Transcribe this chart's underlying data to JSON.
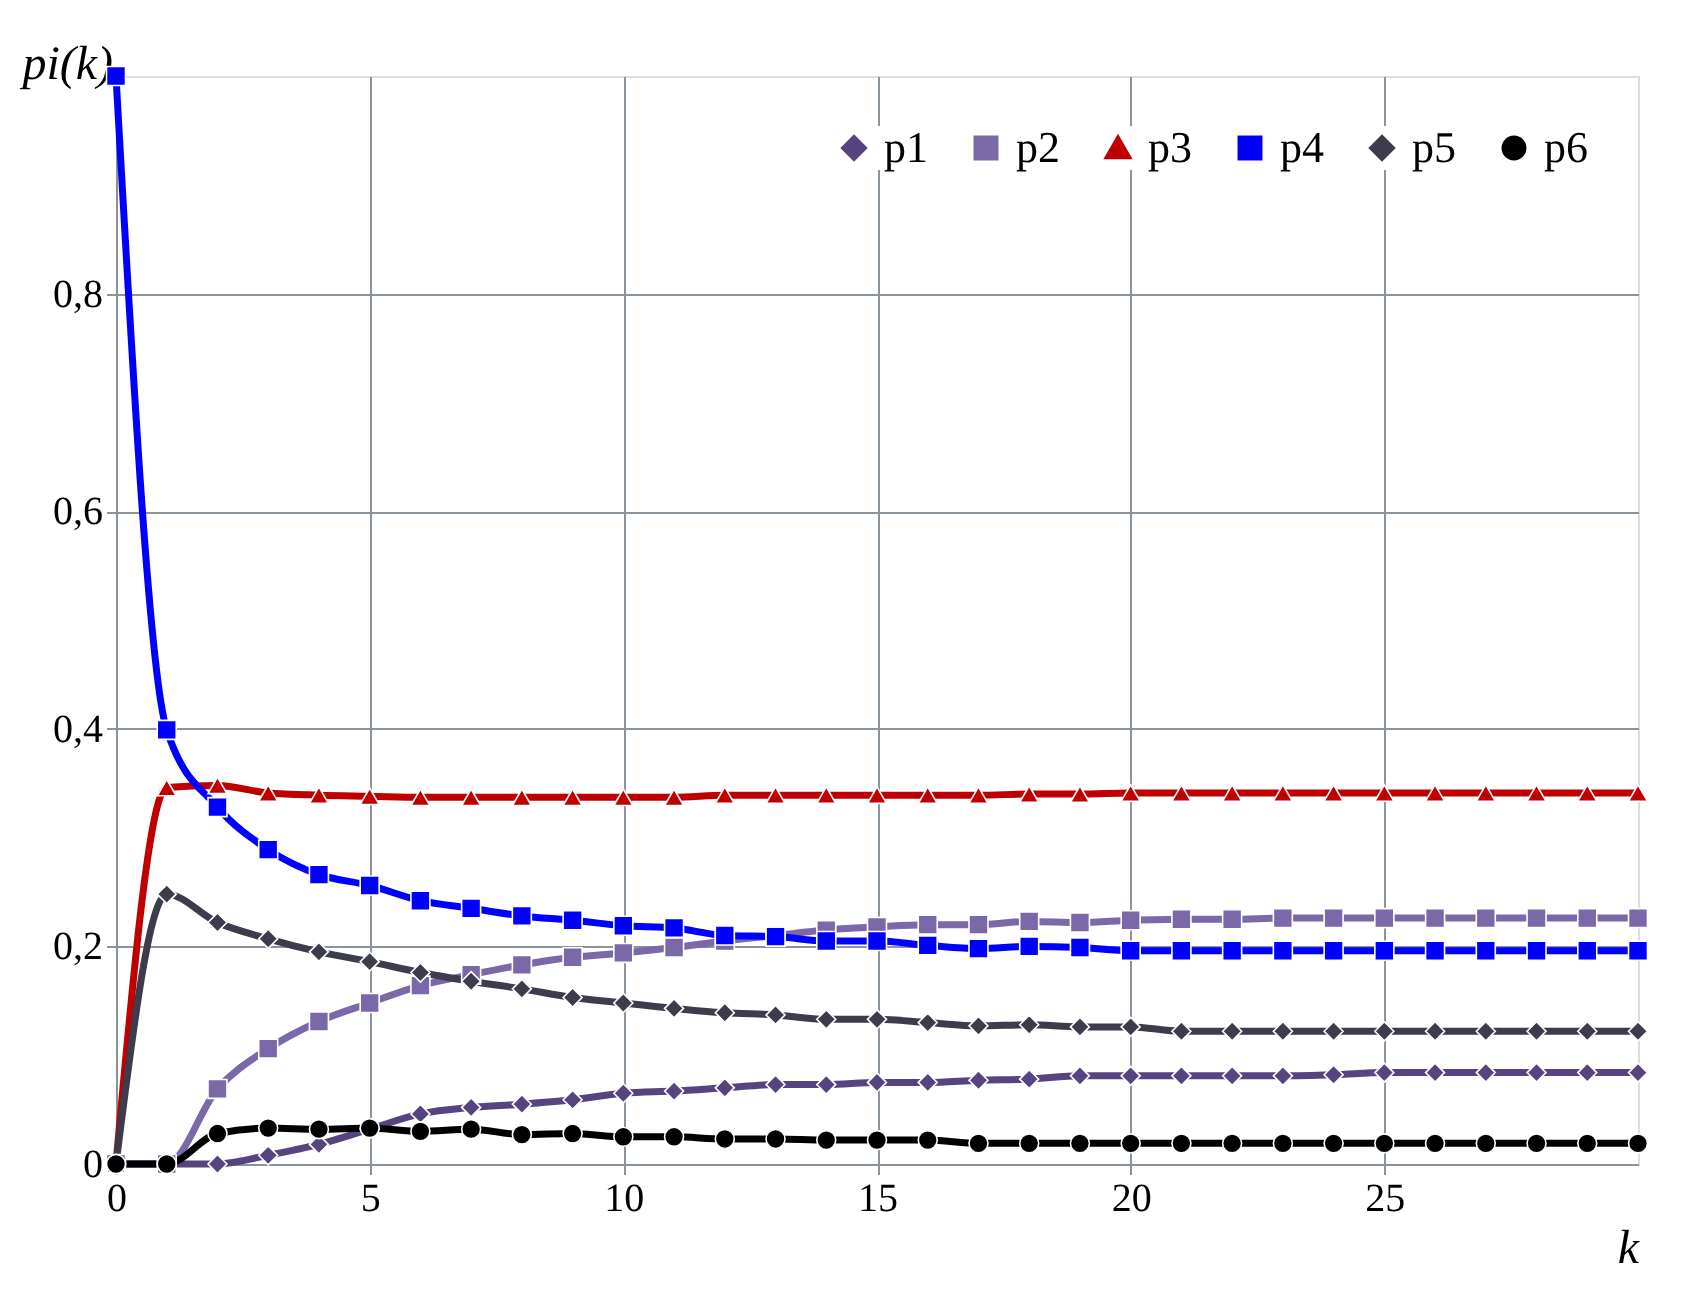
{
  "chart_data": {
    "type": "line",
    "xlabel": "k",
    "ylabel": "pi(k)",
    "x": [
      0,
      1,
      2,
      3,
      4,
      5,
      6,
      7,
      8,
      9,
      10,
      11,
      12,
      13,
      14,
      15,
      16,
      17,
      18,
      19,
      20,
      21,
      22,
      23,
      24,
      25,
      26,
      27,
      28,
      29,
      30
    ],
    "xlim": [
      0,
      30
    ],
    "xticks": [
      0,
      5,
      10,
      15,
      20,
      25
    ],
    "ylim": [
      0,
      1
    ],
    "yticks": [
      {
        "value": 0,
        "label": "0"
      },
      {
        "value": 0.2,
        "label": "0,2"
      },
      {
        "value": 0.4,
        "label": "0,4"
      },
      {
        "value": 0.6,
        "label": "0,6"
      },
      {
        "value": 0.8,
        "label": "0,8"
      }
    ],
    "grid": true,
    "legend": "top right",
    "line_style": "solid",
    "series": [
      {
        "name": "p1",
        "color": "#56437f",
        "marker": "diamond",
        "values": [
          0,
          0,
          0,
          0.008,
          0.018,
          0.032,
          0.046,
          0.052,
          0.055,
          0.059,
          0.065,
          0.067,
          0.07,
          0.073,
          0.073,
          0.075,
          0.075,
          0.077,
          0.078,
          0.081,
          0.081,
          0.081,
          0.081,
          0.081,
          0.082,
          0.084,
          0.084,
          0.084,
          0.084,
          0.084,
          0.084
        ]
      },
      {
        "name": "p2",
        "color": "#7a68a8",
        "marker": "square",
        "values": [
          0,
          0,
          0.069,
          0.106,
          0.131,
          0.148,
          0.164,
          0.174,
          0.183,
          0.19,
          0.194,
          0.199,
          0.205,
          0.21,
          0.215,
          0.218,
          0.22,
          0.22,
          0.223,
          0.222,
          0.224,
          0.225,
          0.225,
          0.226,
          0.226,
          0.226,
          0.226,
          0.226,
          0.226,
          0.226,
          0.226
        ]
      },
      {
        "name": "p3",
        "color": "#c00000",
        "marker": "triangle",
        "values": [
          0,
          0.346,
          0.348,
          0.341,
          0.339,
          0.338,
          0.337,
          0.337,
          0.337,
          0.337,
          0.337,
          0.337,
          0.339,
          0.339,
          0.339,
          0.339,
          0.339,
          0.339,
          0.34,
          0.34,
          0.341,
          0.341,
          0.341,
          0.341,
          0.341,
          0.341,
          0.341,
          0.341,
          0.341,
          0.341,
          0.341
        ]
      },
      {
        "name": "p4",
        "color": "#0000ff",
        "marker": "square",
        "values": [
          1,
          0.399,
          0.328,
          0.289,
          0.266,
          0.256,
          0.242,
          0.235,
          0.228,
          0.224,
          0.219,
          0.217,
          0.21,
          0.209,
          0.205,
          0.205,
          0.201,
          0.198,
          0.2,
          0.199,
          0.196,
          0.196,
          0.196,
          0.196,
          0.196,
          0.196,
          0.196,
          0.196,
          0.196,
          0.196,
          0.196
        ]
      },
      {
        "name": "p5",
        "color": "#3c3c4c",
        "marker": "diamond",
        "values": [
          0,
          0.248,
          0.222,
          0.207,
          0.195,
          0.186,
          0.176,
          0.168,
          0.161,
          0.153,
          0.148,
          0.143,
          0.139,
          0.137,
          0.133,
          0.133,
          0.13,
          0.127,
          0.128,
          0.126,
          0.126,
          0.122,
          0.122,
          0.122,
          0.122,
          0.122,
          0.122,
          0.122,
          0.122,
          0.122,
          0.122
        ]
      },
      {
        "name": "p6",
        "color": "#000000",
        "marker": "circle",
        "values": [
          0,
          0,
          0.028,
          0.033,
          0.032,
          0.033,
          0.03,
          0.032,
          0.027,
          0.028,
          0.025,
          0.025,
          0.023,
          0.023,
          0.022,
          0.022,
          0.022,
          0.019,
          0.019,
          0.019,
          0.019,
          0.019,
          0.019,
          0.019,
          0.019,
          0.019,
          0.019,
          0.019,
          0.019,
          0.019,
          0.019
        ]
      }
    ]
  }
}
